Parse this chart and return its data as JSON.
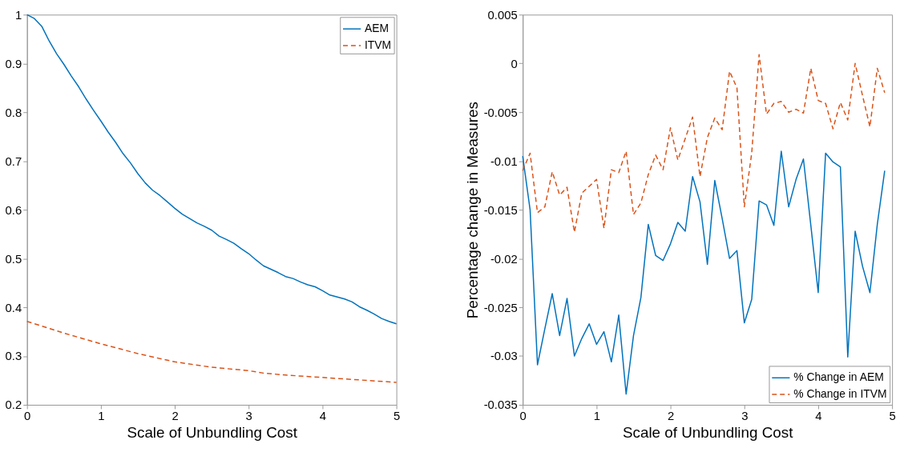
{
  "chart_data": [
    {
      "type": "line",
      "xlabel": "Scale of Unbundling Cost",
      "xlim": [
        0,
        5
      ],
      "xticks": [
        0,
        1,
        2,
        3,
        4,
        5
      ],
      "ylim": [
        0.2,
        1
      ],
      "yticks": [
        0.2,
        0.3,
        0.4,
        0.5,
        0.6,
        0.7,
        0.8,
        0.9,
        1
      ],
      "legend": "top right",
      "series": [
        {
          "name": "AEM",
          "color": "#0072bd",
          "line_style": "solid",
          "x": [
            0,
            0.1,
            0.2,
            0.3,
            0.4,
            0.5,
            0.6,
            0.7,
            0.8,
            0.9,
            1,
            1.1,
            1.2,
            1.3,
            1.4,
            1.5,
            1.6,
            1.7,
            1.8,
            1.9,
            2,
            2.1,
            2.2,
            2.3,
            2.4,
            2.5,
            2.6,
            2.7,
            2.8,
            2.9,
            3,
            3.1,
            3.2,
            3.3,
            3.4,
            3.5,
            3.6,
            3.7,
            3.8,
            3.9,
            4,
            4.1,
            4.2,
            4.3,
            4.4,
            4.5,
            4.6,
            4.7,
            4.8,
            4.9,
            5
          ],
          "values": [
            1.0,
            0.992,
            0.976,
            0.946,
            0.92,
            0.898,
            0.874,
            0.852,
            0.827,
            0.804,
            0.782,
            0.759,
            0.738,
            0.715,
            0.696,
            0.674,
            0.655,
            0.64,
            0.629,
            0.616,
            0.603,
            0.591,
            0.582,
            0.573,
            0.566,
            0.558,
            0.546,
            0.539,
            0.531,
            0.52,
            0.51,
            0.497,
            0.485,
            0.478,
            0.471,
            0.463,
            0.459,
            0.452,
            0.446,
            0.442,
            0.434,
            0.425,
            0.421,
            0.417,
            0.411,
            0.401,
            0.394,
            0.386,
            0.377,
            0.371,
            0.366
          ]
        },
        {
          "name": "ITVM",
          "color": "#d95319",
          "line_style": "dashed",
          "x": [
            0,
            0.5,
            1,
            1.5,
            2,
            2.5,
            3,
            3.2,
            3.5,
            4,
            4.5,
            5
          ],
          "values": [
            0.371,
            0.347,
            0.325,
            0.305,
            0.288,
            0.277,
            0.27,
            0.265,
            0.261,
            0.256,
            0.251,
            0.246
          ]
        }
      ]
    },
    {
      "type": "line",
      "xlabel": "Scale of Unbundling Cost",
      "ylabel": "Percentage change in Measures",
      "xlim": [
        0,
        5
      ],
      "xticks": [
        0,
        1,
        2,
        3,
        4,
        5
      ],
      "ylim": [
        -0.035,
        0.005
      ],
      "yticks": [
        -0.035,
        -0.03,
        -0.025,
        -0.02,
        -0.015,
        -0.01,
        -0.005,
        0,
        0.005
      ],
      "legend": "bottom right",
      "series": [
        {
          "name": "% Change in AEM",
          "color": "#0072bd",
          "line_style": "solid",
          "x": [
            0,
            0.1,
            0.2,
            0.3,
            0.4,
            0.5,
            0.6,
            0.7,
            0.8,
            0.9,
            1,
            1.1,
            1.2,
            1.3,
            1.4,
            1.5,
            1.6,
            1.7,
            1.8,
            1.9,
            2,
            2.1,
            2.2,
            2.3,
            2.4,
            2.5,
            2.6,
            2.7,
            2.8,
            2.9,
            3,
            3.1,
            3.2,
            3.3,
            3.4,
            3.5,
            3.6,
            3.7,
            3.8,
            3.9,
            4,
            4.1,
            4.2,
            4.3,
            4.4,
            4.5,
            4.6,
            4.7,
            4.8,
            4.9
          ],
          "values": [
            -0.0095,
            -0.015,
            -0.0309,
            -0.0272,
            -0.0236,
            -0.0279,
            -0.0241,
            -0.03,
            -0.0282,
            -0.0267,
            -0.0288,
            -0.0275,
            -0.0306,
            -0.0258,
            -0.0339,
            -0.0279,
            -0.024,
            -0.0165,
            -0.0197,
            -0.0202,
            -0.0185,
            -0.0163,
            -0.0172,
            -0.0116,
            -0.0142,
            -0.0206,
            -0.012,
            -0.0159,
            -0.02,
            -0.0192,
            -0.0266,
            -0.0242,
            -0.0141,
            -0.0145,
            -0.0166,
            -0.009,
            -0.0147,
            -0.0119,
            -0.0098,
            -0.0166,
            -0.0235,
            -0.0092,
            -0.0101,
            -0.0106,
            -0.0301,
            -0.0172,
            -0.0208,
            -0.0235,
            -0.0165,
            -0.011
          ]
        },
        {
          "name": "% Change in ITVM",
          "color": "#d95319",
          "line_style": "dashed",
          "x": [
            0,
            0.1,
            0.2,
            0.3,
            0.4,
            0.5,
            0.6,
            0.7,
            0.8,
            0.9,
            1,
            1.1,
            1.2,
            1.3,
            1.4,
            1.5,
            1.6,
            1.7,
            1.8,
            1.9,
            2,
            2.1,
            2.2,
            2.3,
            2.4,
            2.5,
            2.6,
            2.7,
            2.8,
            2.9,
            3,
            3.1,
            3.2,
            3.3,
            3.4,
            3.5,
            3.6,
            3.7,
            3.8,
            3.9,
            4,
            4.1,
            4.2,
            4.3,
            4.4,
            4.5,
            4.6,
            4.7,
            4.8,
            4.9
          ],
          "values": [
            -0.011,
            -0.0092,
            -0.0153,
            -0.0147,
            -0.0111,
            -0.0135,
            -0.0127,
            -0.0173,
            -0.0133,
            -0.0126,
            -0.0119,
            -0.0169,
            -0.0109,
            -0.0112,
            -0.009,
            -0.0155,
            -0.0143,
            -0.0114,
            -0.0094,
            -0.0109,
            -0.0066,
            -0.0099,
            -0.0077,
            -0.0055,
            -0.0116,
            -0.0076,
            -0.0056,
            -0.0068,
            -0.0008,
            -0.0025,
            -0.0147,
            -0.0092,
            0.0009,
            -0.0052,
            -0.0041,
            -0.0039,
            -0.005,
            -0.0047,
            -0.0051,
            -0.0005,
            -0.0038,
            -0.0041,
            -0.0067,
            -0.004,
            -0.0058,
            0.0,
            -0.0033,
            -0.0065,
            -0.0005,
            -0.003
          ]
        }
      ]
    }
  ]
}
